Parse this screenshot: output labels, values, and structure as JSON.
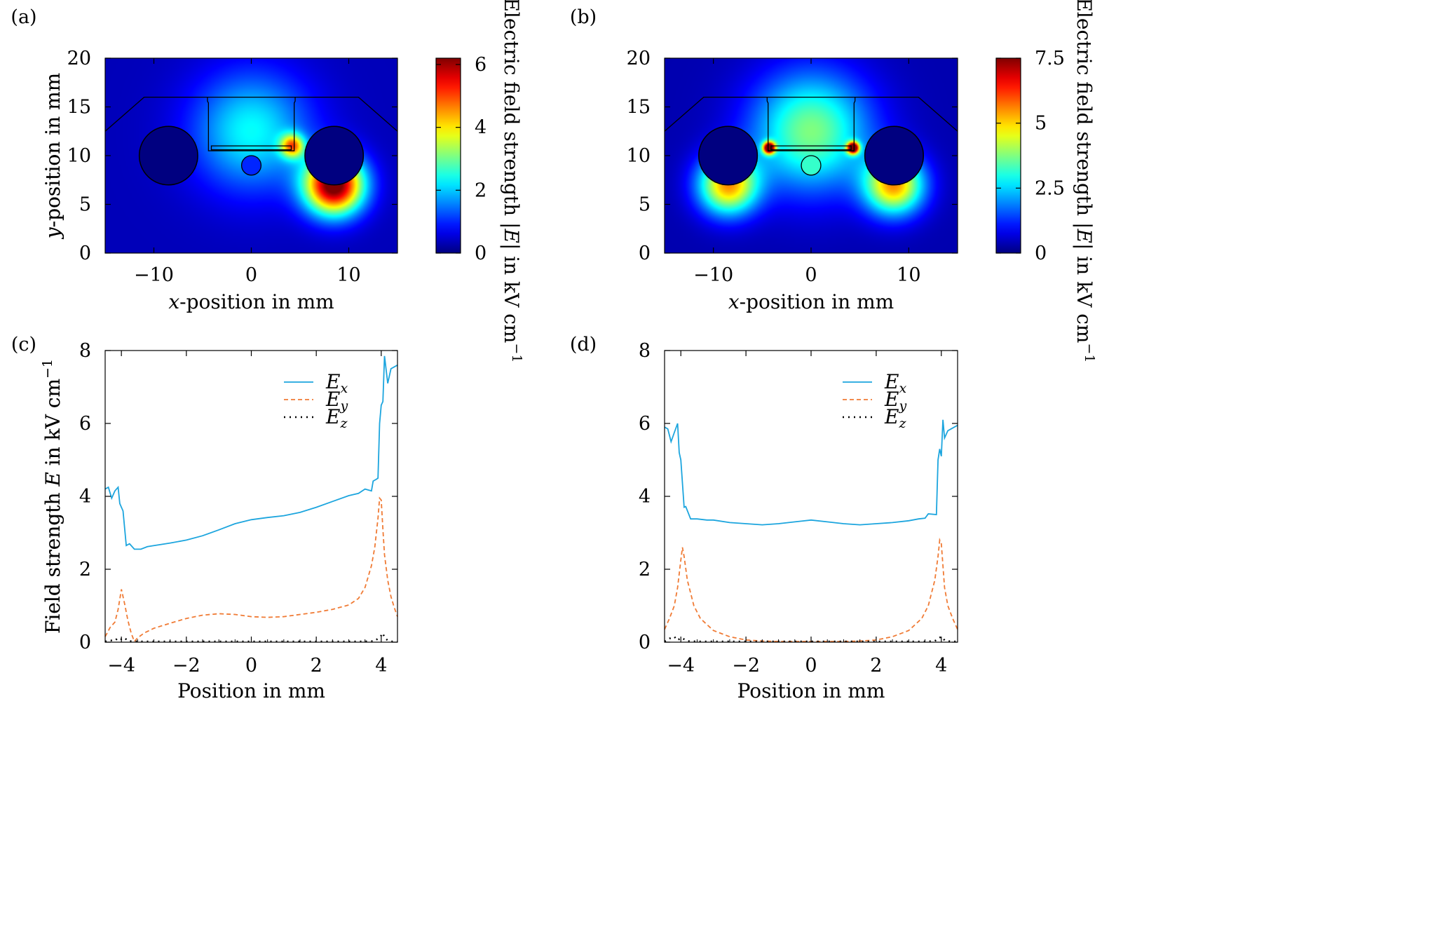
{
  "chart_data": [
    {
      "panel": "(a)",
      "type": "heatmap",
      "xlabel": "x-position in mm",
      "ylabel": "y-position in mm",
      "colorbar_label": "Electric field strength |E| in kV cm−1",
      "xlim": [
        -15,
        15
      ],
      "ylim": [
        0,
        20
      ],
      "xticks": [
        -10,
        0,
        10
      ],
      "yticks": [
        0,
        5,
        10,
        15,
        20
      ],
      "clim": [
        0,
        6.2
      ],
      "colorbar_ticks": [
        0,
        2,
        4,
        6
      ],
      "colormap": "jet",
      "hotspots": [
        {
          "x": 8.5,
          "y": 7,
          "value": 6.2,
          "spread": 3.0
        },
        {
          "x": 0,
          "y": 12.5,
          "value": 2.0,
          "spread": 6.0
        },
        {
          "x": 4.2,
          "y": 11,
          "value": 3.5,
          "spread": 1.2
        }
      ],
      "electrodes": [
        {
          "x": -8.5,
          "y": 10,
          "r": 3
        },
        {
          "x": 8.5,
          "y": 10,
          "r": 3
        }
      ],
      "small_circle": {
        "x": 0,
        "y": 9,
        "r": 1
      },
      "small_circle_value": 1.0,
      "holder_outline": [
        [
          -15,
          12.5
        ],
        [
          -11,
          16
        ],
        [
          11,
          16
        ],
        [
          15,
          12.5
        ]
      ],
      "channel": {
        "x1": -4.5,
        "x2": 4.5,
        "y_bottom": 10.5,
        "y_top": 16
      },
      "plate": {
        "x1": -4.1,
        "x2": 4.1,
        "y1": 10.6,
        "y2": 11
      }
    },
    {
      "panel": "(b)",
      "type": "heatmap",
      "xlabel": "x-position in mm",
      "ylabel": "y-position in mm",
      "colorbar_label": "Electric field strength |E| in kV cm−1",
      "xlim": [
        -15,
        15
      ],
      "ylim": [
        0,
        20
      ],
      "xticks": [
        -10,
        0,
        10
      ],
      "yticks": [
        0,
        5,
        10,
        15,
        20
      ],
      "clim": [
        0,
        7.5
      ],
      "colorbar_ticks": [
        0,
        2.5,
        5,
        7.5
      ],
      "colormap": "jet",
      "hotspots": [
        {
          "x": 8.5,
          "y": 7,
          "value": 5.0,
          "spread": 3.0
        },
        {
          "x": -8.5,
          "y": 7,
          "value": 5.0,
          "spread": 3.0
        },
        {
          "x": 0,
          "y": 12.5,
          "value": 3.4,
          "spread": 6.0
        },
        {
          "x": 4.3,
          "y": 10.8,
          "value": 7.5,
          "spread": 0.6
        },
        {
          "x": -4.3,
          "y": 10.8,
          "value": 7.5,
          "spread": 0.6
        }
      ],
      "electrodes": [
        {
          "x": -8.5,
          "y": 10,
          "r": 3
        },
        {
          "x": 8.5,
          "y": 10,
          "r": 3
        }
      ],
      "small_circle": {
        "x": 0,
        "y": 9,
        "r": 1
      },
      "small_circle_value": 3.2,
      "holder_outline": [
        [
          -15,
          12.5
        ],
        [
          -11,
          16
        ],
        [
          11,
          16
        ],
        [
          15,
          12.5
        ]
      ],
      "channel": {
        "x1": -4.5,
        "x2": 4.5,
        "y_bottom": 10.5,
        "y_top": 16
      },
      "plate": {
        "x1": -4.1,
        "x2": 4.1,
        "y1": 10.6,
        "y2": 11
      }
    },
    {
      "panel": "(c)",
      "type": "line",
      "xlabel": "Position in mm",
      "ylabel": "Field strength E in kV cm−1",
      "xlim": [
        -4.5,
        4.5
      ],
      "ylim": [
        0,
        8
      ],
      "xticks": [
        -4,
        -2,
        0,
        2,
        4
      ],
      "yticks": [
        0,
        2,
        4,
        6,
        8
      ],
      "legend_position": "top-center",
      "series": [
        {
          "name": "Ex",
          "color": "#1ca5de",
          "dash": "solid",
          "x": [
            -4.5,
            -4.4,
            -4.3,
            -4.2,
            -4.1,
            -4.05,
            -3.95,
            -3.85,
            -3.75,
            -3.6,
            -3.4,
            -3.2,
            -3.0,
            -2.5,
            -2.0,
            -1.5,
            -1.0,
            -0.5,
            0.0,
            0.5,
            1.0,
            1.5,
            2.0,
            2.5,
            3.0,
            3.3,
            3.5,
            3.7,
            3.75,
            3.85,
            3.9,
            3.95,
            4.0,
            4.05,
            4.1,
            4.2,
            4.3,
            4.5
          ],
          "y": [
            4.2,
            4.25,
            3.95,
            4.15,
            4.25,
            3.8,
            3.6,
            2.65,
            2.7,
            2.55,
            2.55,
            2.62,
            2.65,
            2.72,
            2.8,
            2.92,
            3.08,
            3.25,
            3.36,
            3.42,
            3.47,
            3.56,
            3.7,
            3.86,
            4.02,
            4.08,
            4.2,
            4.15,
            4.42,
            4.47,
            4.5,
            6.0,
            6.5,
            6.6,
            7.85,
            7.1,
            7.5,
            7.6
          ]
        },
        {
          "name": "Ey",
          "color": "#f07b35",
          "dash": "dashed",
          "x": [
            -4.5,
            -4.35,
            -4.2,
            -4.1,
            -4.0,
            -3.9,
            -3.8,
            -3.7,
            -3.6,
            -3.5,
            -3.3,
            -3.0,
            -2.5,
            -2.0,
            -1.5,
            -1.0,
            -0.5,
            0.0,
            0.5,
            1.0,
            1.5,
            2.0,
            2.5,
            3.0,
            3.3,
            3.5,
            3.7,
            3.8,
            3.9,
            3.95,
            4.0,
            4.05,
            4.1,
            4.2,
            4.3,
            4.4,
            4.5
          ],
          "y": [
            0.15,
            0.4,
            0.55,
            0.9,
            1.45,
            1.05,
            0.6,
            0.25,
            0.02,
            0.12,
            0.25,
            0.38,
            0.52,
            0.65,
            0.74,
            0.78,
            0.76,
            0.7,
            0.68,
            0.7,
            0.76,
            0.82,
            0.9,
            1.02,
            1.2,
            1.5,
            2.1,
            2.6,
            3.4,
            3.95,
            3.9,
            3.1,
            2.4,
            1.7,
            1.25,
            0.95,
            0.7
          ]
        },
        {
          "name": "Ez",
          "color": "#000000",
          "dash": "dotted",
          "x": [
            -4.5,
            -4.35,
            -4.2,
            -4.1,
            -4.0,
            -3.9,
            -3.8,
            -3.5,
            -3.0,
            -2.0,
            -1.0,
            0.0,
            1.0,
            2.0,
            3.0,
            3.5,
            3.8,
            3.9,
            4.0,
            4.05,
            4.1,
            4.2,
            4.3,
            4.5
          ],
          "y": [
            0.02,
            0.05,
            0.04,
            0.12,
            0.08,
            0.12,
            0.03,
            0.02,
            0.02,
            0.02,
            0.02,
            0.02,
            0.02,
            0.02,
            0.02,
            0.02,
            0.03,
            0.1,
            0.18,
            0.25,
            0.12,
            0.05,
            0.02,
            0.02
          ]
        }
      ]
    },
    {
      "panel": "(d)",
      "type": "line",
      "xlabel": "Position in mm",
      "ylabel": "Field strength E in kV cm−1",
      "xlim": [
        -4.5,
        4.5
      ],
      "ylim": [
        0,
        8
      ],
      "xticks": [
        -4,
        -2,
        0,
        2,
        4
      ],
      "yticks": [
        0,
        2,
        4,
        6,
        8
      ],
      "legend_position": "top-center",
      "series": [
        {
          "name": "Ex",
          "color": "#1ca5de",
          "dash": "solid",
          "x": [
            -4.5,
            -4.4,
            -4.3,
            -4.2,
            -4.1,
            -4.05,
            -4.0,
            -3.9,
            -3.85,
            -3.7,
            -3.5,
            -3.2,
            -3.0,
            -2.5,
            -2.0,
            -1.5,
            -1.0,
            -0.5,
            0.0,
            0.5,
            1.0,
            1.5,
            2.0,
            2.5,
            3.0,
            3.3,
            3.5,
            3.6,
            3.85,
            3.9,
            3.95,
            4.0,
            4.05,
            4.1,
            4.2,
            4.3,
            4.5
          ],
          "y": [
            5.9,
            5.85,
            5.5,
            5.75,
            6.0,
            5.2,
            5.0,
            3.7,
            3.72,
            3.38,
            3.38,
            3.35,
            3.35,
            3.28,
            3.25,
            3.22,
            3.25,
            3.3,
            3.35,
            3.3,
            3.25,
            3.22,
            3.25,
            3.28,
            3.33,
            3.38,
            3.4,
            3.52,
            3.5,
            5.0,
            5.3,
            5.1,
            6.1,
            5.6,
            5.8,
            5.85,
            5.95
          ]
        },
        {
          "name": "Ey",
          "color": "#f07b35",
          "dash": "dashed",
          "x": [
            -4.5,
            -4.35,
            -4.2,
            -4.1,
            -4.0,
            -3.95,
            -3.9,
            -3.8,
            -3.6,
            -3.4,
            -3.0,
            -2.5,
            -2.0,
            -1.5,
            -1.0,
            -0.5,
            0.0,
            0.5,
            1.0,
            1.5,
            2.0,
            2.5,
            3.0,
            3.4,
            3.6,
            3.8,
            3.9,
            3.95,
            4.0,
            4.1,
            4.2,
            4.35,
            4.5
          ],
          "y": [
            0.35,
            0.65,
            1.0,
            1.5,
            2.25,
            2.6,
            2.35,
            1.7,
            1.0,
            0.65,
            0.32,
            0.15,
            0.06,
            0.03,
            0.02,
            0.02,
            0.02,
            0.02,
            0.02,
            0.03,
            0.06,
            0.15,
            0.32,
            0.65,
            1.0,
            1.7,
            2.35,
            2.8,
            2.7,
            1.5,
            1.0,
            0.65,
            0.35
          ]
        },
        {
          "name": "Ez",
          "color": "#000000",
          "dash": "dotted",
          "x": [
            -4.5,
            -4.35,
            -4.2,
            -4.1,
            -4.0,
            -3.9,
            -3.8,
            -3.5,
            -3.0,
            -2.0,
            -1.0,
            0.0,
            1.0,
            2.0,
            3.0,
            3.5,
            3.8,
            3.9,
            4.0,
            4.05,
            4.1,
            4.2,
            4.3,
            4.5
          ],
          "y": [
            0.02,
            0.1,
            0.15,
            0.05,
            0.12,
            0.08,
            0.03,
            0.02,
            0.02,
            0.02,
            0.02,
            0.02,
            0.02,
            0.02,
            0.02,
            0.02,
            0.03,
            0.1,
            0.15,
            0.12,
            0.05,
            0.03,
            0.02,
            0.02
          ]
        }
      ]
    }
  ]
}
